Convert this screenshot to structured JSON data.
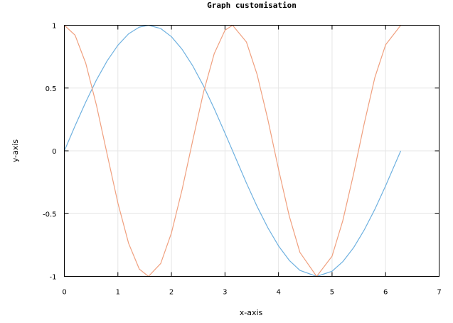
{
  "chart_data": {
    "type": "line",
    "title": "Graph customisation",
    "xlabel": "x-axis",
    "ylabel": "y-axis",
    "xlim": [
      0,
      7
    ],
    "ylim": [
      -1,
      1
    ],
    "grid": true,
    "xticks": [
      "0",
      "1",
      "2",
      "3",
      "4",
      "5",
      "6",
      "7"
    ],
    "yticks": [
      "-1",
      "-0.5",
      "0",
      "0.5",
      "1"
    ],
    "series": [
      {
        "color": "#6fb1e0",
        "x": [
          0,
          0.2,
          0.4,
          0.6,
          0.8,
          1.0,
          1.2,
          1.4,
          1.571,
          1.8,
          2.0,
          2.2,
          2.4,
          2.6,
          2.8,
          3.0,
          3.142,
          3.4,
          3.6,
          3.8,
          4.0,
          4.2,
          4.4,
          4.712,
          5.0,
          5.2,
          5.4,
          5.6,
          5.8,
          6.0,
          6.283
        ],
        "y": [
          0,
          0.199,
          0.389,
          0.565,
          0.717,
          0.841,
          0.932,
          0.985,
          1.0,
          0.974,
          0.909,
          0.808,
          0.675,
          0.516,
          0.335,
          0.141,
          0.0,
          -0.256,
          -0.443,
          -0.612,
          -0.757,
          -0.872,
          -0.952,
          -1.0,
          -0.959,
          -0.883,
          -0.773,
          -0.631,
          -0.465,
          -0.279,
          0.0
        ]
      },
      {
        "color": "#f0a07f",
        "x": [
          0,
          0.2,
          0.4,
          0.6,
          0.8,
          1.0,
          1.2,
          1.4,
          1.571,
          1.8,
          2.0,
          2.2,
          2.4,
          2.6,
          2.8,
          3.0,
          3.142,
          3.4,
          3.6,
          3.8,
          4.0,
          4.2,
          4.4,
          4.712,
          5.0,
          5.2,
          5.4,
          5.6,
          5.8,
          6.0,
          6.283
        ],
        "y": [
          1.0,
          0.921,
          0.697,
          0.362,
          -0.029,
          -0.416,
          -0.737,
          -0.942,
          -1.0,
          -0.897,
          -0.654,
          -0.307,
          0.087,
          0.468,
          0.775,
          0.96,
          1.0,
          0.867,
          0.608,
          0.251,
          -0.146,
          -0.518,
          -0.809,
          -1.0,
          -0.839,
          -0.557,
          -0.188,
          0.215,
          0.585,
          0.844,
          1.0
        ]
      }
    ]
  }
}
